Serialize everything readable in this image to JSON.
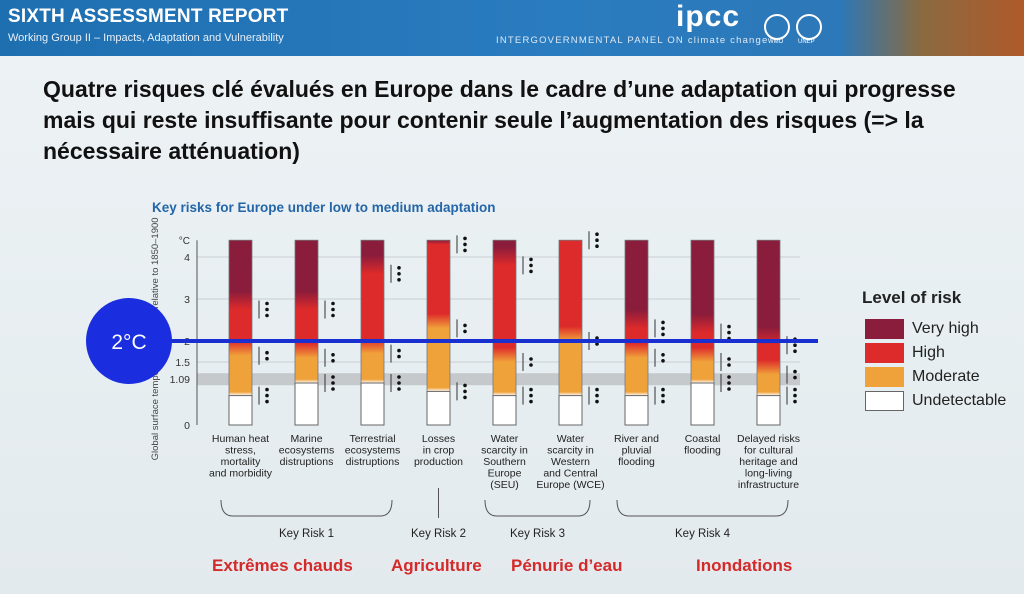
{
  "banner": {
    "title": "SIXTH ASSESSMENT REPORT",
    "subtitle": "Working Group II – Impacts, Adaptation and Vulnerability",
    "ipcc_logo": "ipcc",
    "ipcc_tagline": "INTERGOVERNMENTAL PANEL ON climate change",
    "wmo_label": "WMO",
    "unep_label": "UNEP"
  },
  "slide_title": "Quatre risques clé évalués en Europe dans le cadre d’une adaptation qui progresse mais qui reste insuffisante pour contenir seule l’augmentation des risques (=> la nécessaire atténuation)",
  "annotation": {
    "label": "2°C",
    "value": 2
  },
  "topics": [
    "Extrêmes chauds",
    "Agriculture",
    "Pénurie d’eau",
    "Inondations"
  ],
  "chart_data": {
    "type": "bar",
    "title": "Key risks for Europe under low to medium adaptation",
    "ylabel": "Global surface temperature change relative to 1850–1900",
    "yunit": "°C",
    "yticks": [
      {
        "value": 0,
        "label": "0"
      },
      {
        "value": 1.09,
        "label": "1.09"
      },
      {
        "value": 1.5,
        "label": "1.5"
      },
      {
        "value": 2,
        "label": "2"
      },
      {
        "value": 3,
        "label": "3"
      },
      {
        "value": 4,
        "label": "4"
      }
    ],
    "ylim": [
      0,
      4
    ],
    "grid": true,
    "legend": {
      "title": "Level of risk",
      "placement": "right",
      "items": [
        {
          "label": "Very high",
          "color": "#8a1c3c"
        },
        {
          "label": "High",
          "color": "#dd2a2a"
        },
        {
          "label": "Moderate",
          "color": "#f0a23a"
        },
        {
          "label": "Undetectable",
          "color": "#ffffff"
        }
      ]
    },
    "colors": {
      "very_high": "#8a1c3c",
      "high": "#dd2a2a",
      "moderate": "#f0a23a",
      "undetectable": "#ffffff"
    },
    "categories": [
      {
        "label": "Human heat stress, mortality and morbidity",
        "lines": [
          "Human heat",
          "stress,",
          "mortality",
          "and morbidity"
        ],
        "undetectable_to": 0.7,
        "moderate_to": 1.65,
        "high_to": 2.75
      },
      {
        "label": "Marine ecosystems disruptions",
        "lines": [
          "Marine",
          "ecosystems",
          "distruptions"
        ],
        "undetectable_to": 1.0,
        "moderate_to": 1.6,
        "high_to": 2.75
      },
      {
        "label": "Terrestrial ecosystems distruptions",
        "lines": [
          "Terrestrial",
          "ecosystems",
          "distruptions"
        ],
        "undetectable_to": 1.0,
        "moderate_to": 1.7,
        "high_to": 3.6
      },
      {
        "label": "Losses in crop production",
        "lines": [
          "Losses",
          "in crop",
          "production"
        ],
        "undetectable_to": 0.8,
        "moderate_to": 2.3,
        "high_to": 4.3
      },
      {
        "label": "Water scarcity in Southern Europe (SEU)",
        "lines": [
          "Water",
          "scarcity in",
          "Southern",
          "Europe",
          "(SEU)"
        ],
        "undetectable_to": 0.7,
        "moderate_to": 1.5,
        "high_to": 3.8
      },
      {
        "label": "Water scarcity in Western and Central Europe (WCE)",
        "lines": [
          "Water",
          "scarcity in",
          "Western",
          "and Central",
          "Europe (WCE)"
        ],
        "undetectable_to": 0.7,
        "moderate_to": 2.0,
        "high_to": 4.4
      },
      {
        "label": "River and pluvial flooding",
        "lines": [
          "River and",
          "pluvial",
          "flooding"
        ],
        "undetectable_to": 0.7,
        "moderate_to": 1.6,
        "high_to": 2.3
      },
      {
        "label": "Coastal flooding",
        "lines": [
          "Coastal",
          "flooding"
        ],
        "undetectable_to": 1.0,
        "moderate_to": 1.5,
        "high_to": 2.2
      },
      {
        "label": "Delayed risks for cultural heritage and long-living infrastructure",
        "lines": [
          "Delayed risks",
          "for cultural",
          "heritage and",
          "long-living",
          "infrastructure"
        ],
        "undetectable_to": 0.7,
        "moderate_to": 1.2,
        "high_to": 1.9
      }
    ],
    "groups": [
      {
        "label": "Key Risk 1",
        "from": 0,
        "to": 2
      },
      {
        "label": "Key Risk 2",
        "from": 3,
        "to": 3
      },
      {
        "label": "Key Risk 3",
        "from": 4,
        "to": 5
      },
      {
        "label": "Key Risk 4",
        "from": 6,
        "to": 8
      }
    ]
  }
}
